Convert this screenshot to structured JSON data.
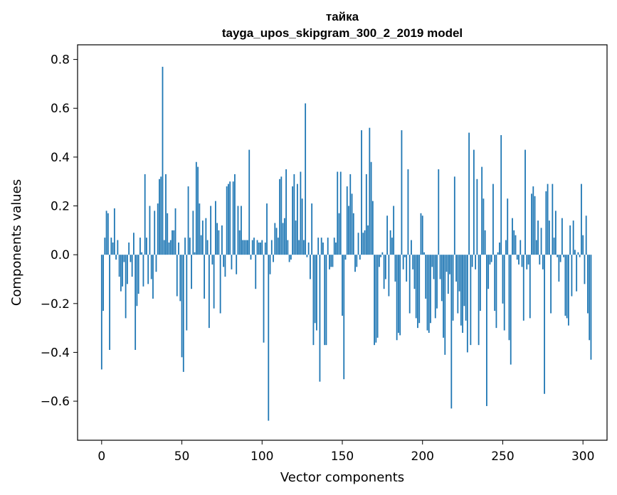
{
  "chart_data": {
    "type": "bar",
    "title": "тайка",
    "subtitle": "tayga_upos_skipgram_300_2_2019 model",
    "xlabel": "Vector components",
    "ylabel": "Components values",
    "xlim": [
      -15,
      315
    ],
    "ylim": [
      -0.76,
      0.86
    ],
    "x_ticks": [
      0,
      50,
      100,
      150,
      200,
      250,
      300
    ],
    "x_tick_labels": [
      "0",
      "50",
      "100",
      "150",
      "200",
      "250",
      "300"
    ],
    "y_ticks": [
      -0.6,
      -0.4,
      -0.2,
      0.0,
      0.2,
      0.4,
      0.6,
      0.8
    ],
    "y_tick_labels": [
      "−0.6",
      "−0.4",
      "−0.2",
      "0.0",
      "0.2",
      "0.4",
      "0.6",
      "0.8"
    ],
    "grid": false,
    "bar_color": "#1f77b4",
    "x_start": 0,
    "values": [
      -0.47,
      -0.23,
      0.07,
      0.18,
      0.17,
      -0.39,
      0.07,
      0.05,
      0.19,
      -0.02,
      0.06,
      -0.09,
      -0.15,
      -0.13,
      -0.03,
      -0.26,
      -0.12,
      0.05,
      -0.03,
      -0.09,
      0.09,
      -0.39,
      -0.21,
      -0.16,
      0.07,
      0.01,
      -0.13,
      0.33,
      0.07,
      -0.12,
      0.2,
      -0.1,
      -0.18,
      0.18,
      -0.07,
      0.21,
      0.31,
      0.32,
      0.77,
      0.06,
      0.33,
      0.17,
      0.05,
      0.06,
      0.1,
      0.1,
      0.19,
      -0.17,
      0.05,
      -0.19,
      -0.42,
      -0.48,
      0.07,
      -0.31,
      0.28,
      0.07,
      -0.14,
      0.18,
      0.01,
      0.38,
      0.36,
      0.21,
      0.08,
      0.14,
      -0.18,
      0.15,
      0.06,
      -0.3,
      0.2,
      -0.04,
      -0.22,
      0.22,
      0.13,
      0.1,
      -0.24,
      0.12,
      -0.05,
      -0.09,
      0.28,
      0.29,
      0.3,
      -0.06,
      0.3,
      0.33,
      -0.08,
      0.2,
      0.1,
      0.2,
      0.06,
      0.06,
      0.06,
      0.06,
      0.43,
      -0.02,
      0.06,
      0.07,
      -0.14,
      0.06,
      0.05,
      0.05,
      0.06,
      -0.36,
      0.05,
      0.21,
      -0.68,
      -0.08,
      0.06,
      -0.03,
      0.13,
      0.11,
      0.07,
      0.31,
      0.32,
      0.13,
      0.15,
      0.35,
      0.06,
      -0.03,
      -0.02,
      0.28,
      0.33,
      0.14,
      0.29,
      0.06,
      0.34,
      0.23,
      0.06,
      0.62,
      -0.01,
      0.05,
      -0.1,
      0.21,
      -0.37,
      -0.28,
      -0.31,
      0.07,
      -0.52,
      0.07,
      0.05,
      -0.37,
      -0.37,
      0.07,
      -0.06,
      -0.05,
      -0.05,
      0.07,
      0.05,
      0.34,
      0.17,
      0.34,
      -0.25,
      -0.51,
      -0.02,
      0.28,
      0.2,
      0.33,
      0.25,
      0.17,
      -0.07,
      -0.05,
      0.09,
      -0.02,
      0.51,
      0.09,
      0.1,
      0.33,
      0.12,
      0.52,
      0.38,
      0.22,
      -0.37,
      -0.36,
      -0.34,
      -0.05,
      -0.01,
      0.01,
      -0.14,
      -0.1,
      0.16,
      -0.17,
      0.1,
      0.07,
      0.2,
      -0.11,
      -0.35,
      -0.32,
      -0.33,
      0.51,
      -0.06,
      -0.01,
      -0.11,
      0.35,
      -0.24,
      0.06,
      -0.06,
      -0.14,
      -0.26,
      -0.3,
      -0.28,
      0.17,
      0.16,
      0.01,
      -0.18,
      -0.31,
      -0.32,
      -0.28,
      -0.05,
      -0.1,
      -0.26,
      -0.22,
      0.35,
      -0.1,
      -0.19,
      -0.34,
      -0.41,
      -0.07,
      -0.16,
      -0.08,
      -0.63,
      -0.27,
      0.32,
      -0.11,
      -0.24,
      -0.15,
      -0.29,
      -0.32,
      -0.21,
      -0.27,
      -0.4,
      0.5,
      -0.37,
      -0.05,
      0.43,
      -0.06,
      0.31,
      -0.37,
      -0.23,
      0.36,
      0.23,
      0.1,
      -0.62,
      -0.14,
      -0.04,
      -0.03,
      0.29,
      -0.23,
      -0.3,
      0.01,
      0.05,
      0.49,
      -0.2,
      -0.31,
      0.06,
      0.23,
      -0.35,
      -0.45,
      0.15,
      0.1,
      0.08,
      -0.02,
      -0.04,
      0.06,
      -0.05,
      -0.27,
      0.43,
      -0.06,
      -0.04,
      -0.26,
      0.25,
      0.28,
      0.24,
      0.06,
      0.14,
      -0.04,
      0.11,
      -0.06,
      -0.57,
      0.26,
      0.29,
      0.14,
      -0.24,
      0.29,
      0.07,
      0.18,
      -0.01,
      -0.11,
      -0.03,
      0.15,
      -0.01,
      -0.25,
      -0.26,
      -0.29,
      0.12,
      -0.17,
      0.14,
      0.02,
      -0.15,
      0.01,
      -0.01,
      0.29,
      0.08,
      -0.12,
      0.16,
      -0.24,
      -0.35,
      -0.43
    ]
  }
}
